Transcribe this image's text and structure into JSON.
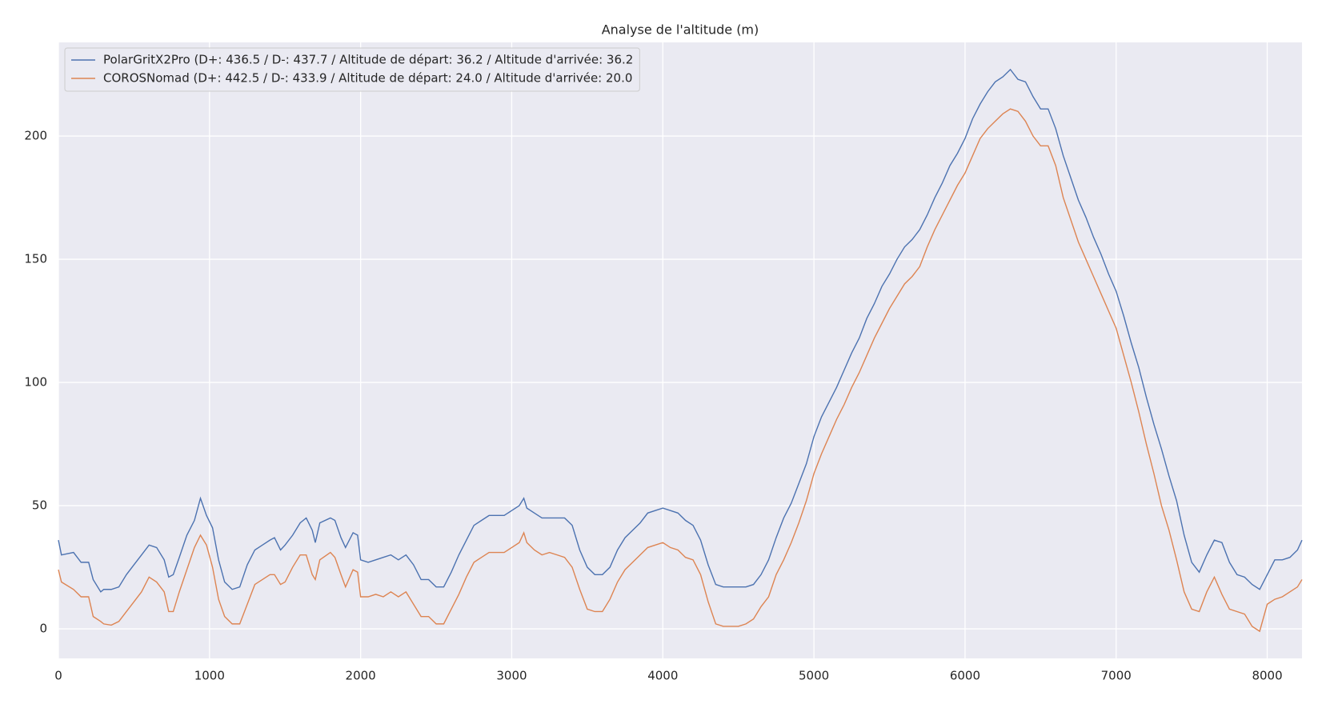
{
  "chart_data": {
    "type": "line",
    "title": "Analyse de l'altitude (m)",
    "x": [
      0,
      20,
      100,
      150,
      200,
      230,
      280,
      300,
      350,
      400,
      450,
      500,
      550,
      600,
      650,
      700,
      730,
      760,
      800,
      850,
      900,
      940,
      980,
      1020,
      1060,
      1100,
      1150,
      1200,
      1250,
      1300,
      1350,
      1400,
      1430,
      1470,
      1500,
      1550,
      1600,
      1640,
      1680,
      1700,
      1730,
      1800,
      1830,
      1870,
      1900,
      1950,
      1980,
      2000,
      2050,
      2100,
      2150,
      2200,
      2250,
      2300,
      2350,
      2400,
      2450,
      2500,
      2550,
      2600,
      2650,
      2700,
      2750,
      2800,
      2850,
      2900,
      2950,
      3000,
      3050,
      3080,
      3100,
      3150,
      3200,
      3250,
      3300,
      3350,
      3400,
      3450,
      3500,
      3550,
      3600,
      3650,
      3700,
      3750,
      3800,
      3850,
      3900,
      3950,
      4000,
      4050,
      4100,
      4150,
      4200,
      4250,
      4300,
      4350,
      4400,
      4500,
      4550,
      4600,
      4650,
      4700,
      4750,
      4800,
      4850,
      4900,
      4950,
      5000,
      5050,
      5100,
      5150,
      5200,
      5250,
      5300,
      5350,
      5400,
      5450,
      5500,
      5550,
      5600,
      5650,
      5700,
      5750,
      5800,
      5850,
      5900,
      5950,
      6000,
      6050,
      6100,
      6150,
      6200,
      6250,
      6300,
      6350,
      6400,
      6450,
      6500,
      6550,
      6600,
      6650,
      6700,
      6750,
      6800,
      6850,
      6900,
      6950,
      7000,
      7050,
      7100,
      7150,
      7200,
      7250,
      7300,
      7350,
      7400,
      7450,
      7500,
      7550,
      7600,
      7650,
      7700,
      7750,
      7800,
      7850,
      7900,
      7950,
      8000,
      8050,
      8100,
      8150,
      8200,
      8230
    ],
    "series": [
      {
        "name": "PolarGritX2Pro (D+: 436.5 / D-: 437.7 / Altitude de départ: 36.2 / Altitude d'arrivée: 36.2",
        "color": "#4c72b0",
        "values": [
          36,
          30,
          31,
          27,
          27,
          20,
          15,
          16,
          16,
          17,
          22,
          26,
          30,
          34,
          33,
          28,
          21,
          22,
          29,
          38,
          44,
          53,
          46,
          41,
          28,
          19,
          16,
          17,
          26,
          32,
          34,
          36,
          37,
          32,
          34,
          38,
          43,
          45,
          40,
          35,
          43,
          45,
          44,
          37,
          33,
          39,
          38,
          28,
          27,
          28,
          29,
          30,
          28,
          30,
          26,
          20,
          20,
          17,
          17,
          23,
          30,
          36,
          42,
          44,
          46,
          46,
          46,
          48,
          50,
          53,
          49,
          47,
          45,
          45,
          45,
          45,
          42,
          32,
          25,
          22,
          22,
          25,
          32,
          37,
          40,
          43,
          47,
          48,
          49,
          48,
          47,
          44,
          42,
          36,
          26,
          18,
          17,
          17,
          17,
          18,
          22,
          28,
          37,
          45,
          51,
          59,
          67,
          78,
          86,
          92,
          98,
          105,
          112,
          118,
          126,
          132,
          139,
          144,
          150,
          155,
          158,
          162,
          168,
          175,
          181,
          188,
          193,
          199,
          207,
          213,
          218,
          222,
          224,
          227,
          223,
          222,
          216,
          211,
          211,
          203,
          192,
          183,
          174,
          167,
          159,
          152,
          144,
          137,
          127,
          116,
          106,
          94,
          83,
          73,
          62,
          52,
          38,
          27,
          23,
          30,
          36,
          35,
          27,
          22,
          21,
          18,
          16,
          22,
          28,
          28,
          29,
          32,
          36
        ]
      },
      {
        "name": "COROSNomad (D+: 442.5 / D-: 433.9 / Altitude de départ: 24.0 / Altitude d'arrivée: 20.0",
        "color": "#dd8452",
        "values": [
          24,
          19,
          16,
          13,
          13,
          5,
          3,
          2,
          1.5,
          3,
          7,
          11,
          15,
          21,
          19,
          15,
          7,
          7,
          15,
          24,
          33,
          38,
          34,
          25,
          12,
          5,
          2,
          2,
          10,
          18,
          20,
          22,
          22,
          18,
          19,
          25,
          30,
          30,
          22,
          20,
          28,
          31,
          29,
          22,
          17,
          24,
          23,
          13,
          13,
          14,
          13,
          15,
          13,
          15,
          10,
          5,
          5,
          2,
          2,
          8,
          14,
          21,
          27,
          29,
          31,
          31,
          31,
          33,
          35,
          39,
          35,
          32,
          30,
          31,
          30,
          29,
          25,
          16,
          8,
          7,
          7,
          12,
          19,
          24,
          27,
          30,
          33,
          34,
          35,
          33,
          32,
          29,
          28,
          22,
          11,
          2,
          1,
          1,
          2,
          4,
          9,
          13,
          22,
          28,
          35,
          43,
          52,
          63,
          71,
          78,
          85,
          91,
          98,
          104,
          111,
          118,
          124,
          130,
          135,
          140,
          143,
          147,
          155,
          162,
          168,
          174,
          180,
          185,
          192,
          199,
          203,
          206,
          209,
          211,
          210,
          206,
          200,
          196,
          196,
          188,
          175,
          166,
          157,
          150,
          143,
          136,
          129,
          122,
          111,
          100,
          88,
          75,
          63,
          50,
          40,
          28,
          15,
          8,
          7,
          15,
          21,
          14,
          8,
          7,
          6,
          1,
          -1,
          10,
          12,
          13,
          15,
          17,
          20
        ]
      }
    ],
    "xlim": [
      0,
      8230
    ],
    "ylim": [
      -12,
      238
    ],
    "xticks": [
      0,
      1000,
      2000,
      3000,
      4000,
      5000,
      6000,
      7000,
      8000
    ],
    "yticks": [
      0,
      50,
      100,
      150,
      200
    ],
    "grid": true,
    "legend": "upper left"
  }
}
